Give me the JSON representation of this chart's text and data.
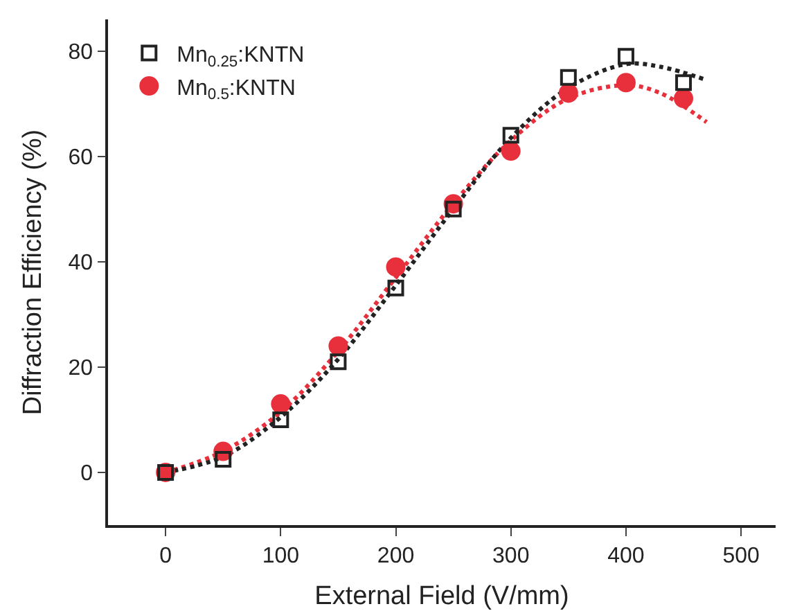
{
  "chart_data": {
    "type": "scatter",
    "xlabel": "External Field (V/mm)",
    "ylabel": "Diffraction Efficiency (%)",
    "xlim": [
      -50,
      530
    ],
    "ylim": [
      -10,
      86
    ],
    "xticks": [
      0,
      100,
      200,
      300,
      400,
      500
    ],
    "yticks": [
      0,
      20,
      40,
      60,
      80
    ],
    "grid": false,
    "legend": "top left",
    "series": [
      {
        "name": "Mn$_{0.25}$:KNTN",
        "color": "#222222",
        "marker": "square",
        "x": [
          0,
          50,
          100,
          150,
          200,
          250,
          300,
          350,
          400,
          450
        ],
        "values": [
          0,
          2.5,
          10,
          21,
          35,
          50,
          64,
          75,
          79,
          74
        ]
      },
      {
        "name": "Mn$_{0.5}$:KNTN",
        "color": "#e8303c",
        "marker": "circle",
        "x": [
          0,
          50,
          100,
          150,
          200,
          250,
          300,
          350,
          400,
          450
        ],
        "values": [
          0,
          4,
          13,
          24,
          39,
          51,
          61,
          72,
          74,
          71
        ]
      },
      {
        "type": "line",
        "color": "#222222",
        "line_style": "dotted",
        "marker": "none",
        "x": [
          0,
          50,
          100,
          150,
          200,
          250,
          300,
          350,
          400,
          430,
          470
        ],
        "values": [
          0,
          3,
          10.5,
          21.5,
          35.5,
          50,
          63.5,
          73,
          77.5,
          77,
          74.5
        ]
      },
      {
        "type": "line",
        "color": "#e8303c",
        "line_style": "dotted",
        "marker": "none",
        "x": [
          0,
          50,
          100,
          150,
          200,
          250,
          300,
          350,
          400,
          430,
          470
        ],
        "values": [
          0,
          4,
          11.5,
          23,
          37,
          51,
          63,
          71,
          73.5,
          72,
          66.5
        ]
      }
    ]
  }
}
